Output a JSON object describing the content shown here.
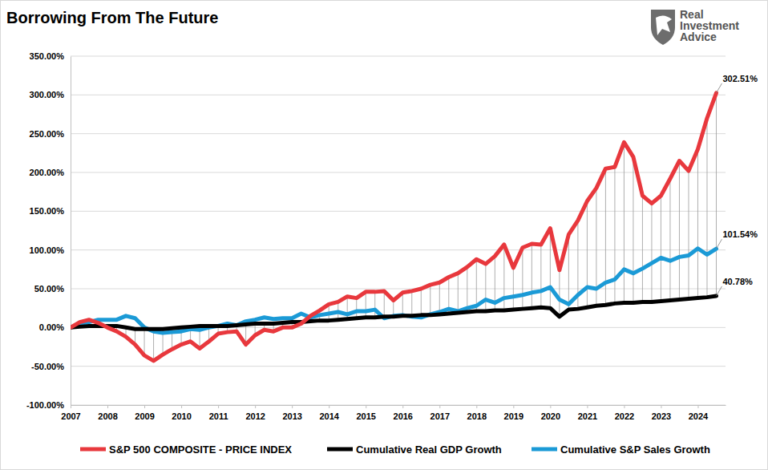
{
  "chart_data": {
    "type": "line",
    "title": "Borrowing From The Future",
    "logo": [
      "Real",
      "Investment",
      "Advice"
    ],
    "x": [
      2007,
      2007.25,
      2007.5,
      2007.75,
      2008,
      2008.25,
      2008.5,
      2008.75,
      2009,
      2009.25,
      2009.5,
      2009.75,
      2010,
      2010.25,
      2010.5,
      2010.75,
      2011,
      2011.25,
      2011.5,
      2011.75,
      2012,
      2012.25,
      2012.5,
      2012.75,
      2013,
      2013.25,
      2013.5,
      2013.75,
      2014,
      2014.25,
      2014.5,
      2014.75,
      2015,
      2015.25,
      2015.5,
      2015.75,
      2016,
      2016.25,
      2016.5,
      2016.75,
      2017,
      2017.25,
      2017.5,
      2017.75,
      2018,
      2018.25,
      2018.5,
      2018.75,
      2019,
      2019.25,
      2019.5,
      2019.75,
      2020,
      2020.25,
      2020.5,
      2020.75,
      2021,
      2021.25,
      2021.5,
      2021.75,
      2022,
      2022.25,
      2022.5,
      2022.75,
      2023,
      2023.25,
      2023.5,
      2023.75,
      2024,
      2024.25,
      2024.5
    ],
    "series": [
      {
        "name": "S&P 500 COMPOSITE - PRICE INDEX",
        "color": "#e8383d",
        "values": [
          0,
          7,
          10,
          6,
          0,
          -5,
          -12,
          -22,
          -36,
          -43,
          -35,
          -28,
          -22,
          -18,
          -27,
          -18,
          -8,
          -6,
          -5,
          -22,
          -10,
          -3,
          -5,
          0,
          0,
          5,
          15,
          22,
          30,
          33,
          40,
          38,
          46,
          46,
          47,
          35,
          45,
          47,
          50,
          55,
          58,
          65,
          70,
          78,
          88,
          82,
          92,
          107,
          77,
          103,
          108,
          107,
          128,
          74,
          120,
          138,
          163,
          180,
          205,
          207,
          239,
          220,
          170,
          160,
          170,
          192,
          215,
          202,
          230,
          270,
          302.51
        ],
        "value_labels": [
          null,
          null,
          null,
          null,
          null,
          null,
          null,
          null,
          null,
          null,
          null,
          null,
          null,
          null,
          null,
          null,
          null,
          null,
          null,
          null,
          null,
          null,
          null,
          null,
          null,
          null,
          null,
          null,
          null,
          null,
          null,
          null,
          null,
          null,
          null,
          null,
          null,
          null,
          null,
          null,
          null,
          null,
          null,
          null,
          null,
          null,
          null,
          null,
          null,
          null,
          null,
          null,
          null,
          null,
          null,
          null,
          null,
          null,
          null,
          null,
          null,
          null,
          null,
          null,
          null,
          null,
          null,
          null,
          null,
          null,
          "302.51%"
        ]
      },
      {
        "name": "Cumulative Real GDP Growth",
        "color": "#000000",
        "values": [
          0,
          1,
          2,
          2,
          2,
          2,
          0,
          -2,
          -2,
          -2,
          -2,
          -1,
          0,
          1,
          2,
          2,
          2,
          2,
          3,
          4,
          5,
          5,
          5,
          6,
          7,
          7,
          8,
          9,
          9,
          10,
          11,
          12,
          13,
          13,
          14,
          14,
          15,
          15,
          16,
          16,
          17,
          18,
          19,
          20,
          21,
          21,
          22,
          22,
          23,
          24,
          25,
          26,
          25,
          14,
          23,
          24,
          26,
          28,
          29,
          31,
          32,
          32,
          33,
          33,
          34,
          35,
          36,
          37,
          38,
          39,
          40.78
        ],
        "value_labels": [
          null,
          null,
          null,
          null,
          null,
          null,
          null,
          null,
          null,
          null,
          null,
          null,
          null,
          null,
          null,
          null,
          null,
          null,
          null,
          null,
          null,
          null,
          null,
          null,
          null,
          null,
          null,
          null,
          null,
          null,
          null,
          null,
          null,
          null,
          null,
          null,
          null,
          null,
          null,
          null,
          null,
          null,
          null,
          null,
          null,
          null,
          null,
          null,
          null,
          null,
          null,
          null,
          null,
          null,
          null,
          null,
          null,
          null,
          null,
          null,
          null,
          null,
          null,
          null,
          null,
          null,
          null,
          null,
          null,
          null,
          "40.78%"
        ]
      },
      {
        "name": "Cumulative S&P Sales Growth",
        "color": "#1b9ad6",
        "values": [
          0,
          5,
          7,
          10,
          10,
          10,
          15,
          12,
          0,
          -5,
          -7,
          -6,
          -5,
          -2,
          -3,
          0,
          2,
          5,
          3,
          8,
          10,
          13,
          11,
          12,
          12,
          18,
          13,
          16,
          18,
          20,
          17,
          21,
          21,
          23,
          12,
          15,
          16,
          14,
          13,
          17,
          20,
          24,
          21,
          25,
          28,
          36,
          32,
          38,
          40,
          42,
          45,
          47,
          52,
          36,
          30,
          42,
          52,
          50,
          58,
          62,
          75,
          70,
          76,
          83,
          90,
          86,
          91,
          93,
          102,
          94,
          101.54
        ],
        "value_labels": [
          null,
          null,
          null,
          null,
          null,
          null,
          null,
          null,
          null,
          null,
          null,
          null,
          null,
          null,
          null,
          null,
          null,
          null,
          null,
          null,
          null,
          null,
          null,
          null,
          null,
          null,
          null,
          null,
          null,
          null,
          null,
          null,
          null,
          null,
          null,
          null,
          null,
          null,
          null,
          null,
          null,
          null,
          null,
          null,
          null,
          null,
          null,
          null,
          null,
          null,
          null,
          null,
          null,
          null,
          null,
          null,
          null,
          null,
          null,
          null,
          null,
          null,
          null,
          null,
          null,
          null,
          null,
          null,
          null,
          null,
          "101.54%"
        ]
      }
    ],
    "xlim": [
      2007,
      2024.75
    ],
    "xticks": [
      2007,
      2008,
      2009,
      2010,
      2011,
      2012,
      2013,
      2014,
      2015,
      2016,
      2017,
      2018,
      2019,
      2020,
      2021,
      2022,
      2023,
      2024
    ],
    "ylim": [
      -100,
      350
    ],
    "yticks": [
      {
        "value": -100,
        "label": "-100.00%"
      },
      {
        "value": -50,
        "label": "-50.00%"
      },
      {
        "value": 0,
        "label": "0.00%"
      },
      {
        "value": 50,
        "label": "50.00%"
      },
      {
        "value": 100,
        "label": "100.00%"
      },
      {
        "value": 150,
        "label": "150.00%"
      },
      {
        "value": 200,
        "label": "200.00%"
      },
      {
        "value": 250,
        "label": "250.00%"
      },
      {
        "value": 300,
        "label": "300.00%"
      },
      {
        "value": 350,
        "label": "350.00%"
      }
    ],
    "grid": true,
    "legend": "bottom"
  }
}
